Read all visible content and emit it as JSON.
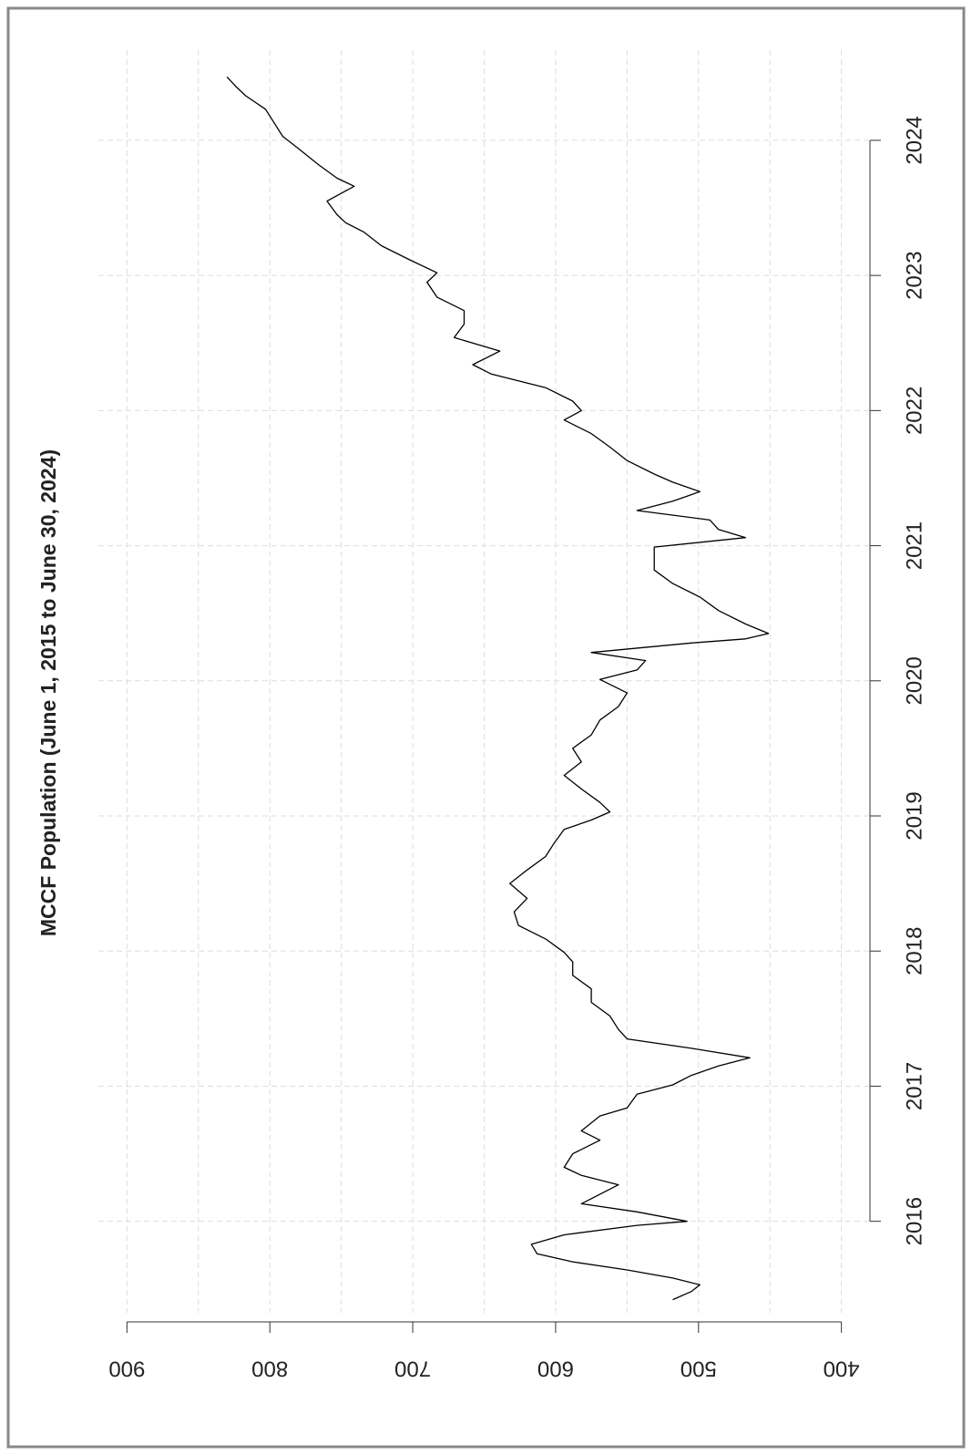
{
  "chart_data": {
    "type": "line",
    "title": "MCCF Population (June 1, 2015 to June 30, 2024)",
    "orientation": "rotated-ccw",
    "x": [
      2015.42,
      2015.48,
      2015.53,
      2015.58,
      2015.64,
      2015.7,
      2015.76,
      2015.83,
      2015.9,
      2015.97,
      2016.0,
      2016.07,
      2016.13,
      2016.27,
      2016.34,
      2016.4,
      2016.5,
      2016.6,
      2016.67,
      2016.78,
      2016.84,
      2016.94,
      2017.01,
      2017.08,
      2017.15,
      2017.21,
      2017.28,
      2017.35,
      2017.42,
      2017.52,
      2017.62,
      2017.72,
      2017.82,
      2017.92,
      2017.99,
      2018.09,
      2018.19,
      2018.29,
      2018.39,
      2018.5,
      2018.6,
      2018.7,
      2018.8,
      2018.9,
      2018.97,
      2019.03,
      2019.1,
      2019.2,
      2019.3,
      2019.4,
      2019.5,
      2019.6,
      2019.71,
      2019.81,
      2019.91,
      2020.01,
      2020.08,
      2020.15,
      2020.21,
      2020.28,
      2020.31,
      2020.35,
      2020.42,
      2020.52,
      2020.62,
      2020.72,
      2020.82,
      2020.92,
      2020.99,
      2021.06,
      2021.12,
      2021.19,
      2021.26,
      2021.33,
      2021.4,
      2021.47,
      2021.53,
      2021.63,
      2021.73,
      2021.83,
      2021.93,
      2022.0,
      2022.07,
      2022.17,
      2022.27,
      2022.34,
      2022.44,
      2022.54,
      2022.64,
      2022.74,
      2022.84,
      2022.95,
      2023.02,
      2023.12,
      2023.22,
      2023.32,
      2023.39,
      2023.45,
      2023.55,
      2023.66,
      2023.72,
      2023.82,
      2023.93,
      2024.03,
      2024.13,
      2024.23,
      2024.33,
      2024.4,
      2024.47
    ],
    "series": [
      {
        "color": "#000000",
        "values": [
          518,
          505,
          499,
          518,
          550,
          588,
          613,
          617,
          594,
          543,
          508,
          543,
          582,
          556,
          582,
          594,
          588,
          569,
          582,
          569,
          550,
          543,
          518,
          505,
          486,
          464,
          505,
          550,
          556,
          562,
          575,
          575,
          588,
          588,
          594,
          607,
          626,
          629,
          620,
          632,
          620,
          607,
          601,
          594,
          575,
          562,
          569,
          582,
          594,
          582,
          588,
          575,
          569,
          556,
          550,
          569,
          543,
          537,
          575,
          505,
          467,
          451,
          467,
          486,
          499,
          518,
          531,
          531,
          531,
          467,
          486,
          492,
          543,
          518,
          499,
          518,
          531,
          550,
          562,
          575,
          594,
          582,
          588,
          607,
          645,
          658,
          639,
          671,
          664,
          664,
          683,
          690,
          683,
          703,
          722,
          734,
          747,
          753,
          760,
          741,
          753,
          766,
          779,
          791,
          797,
          803,
          817,
          824,
          830
        ]
      }
    ],
    "xlim": [
      2015.35,
      2024.6
    ],
    "xticks": [
      2016,
      2017,
      2018,
      2019,
      2020,
      2021,
      2022,
      2023,
      2024
    ],
    "ylim": [
      380,
      920
    ],
    "yticks": [
      400,
      500,
      600,
      700,
      800,
      900
    ],
    "y_grid": [
      400,
      450,
      500,
      550,
      600,
      650,
      700,
      750,
      800,
      850,
      900
    ],
    "grid": true
  }
}
